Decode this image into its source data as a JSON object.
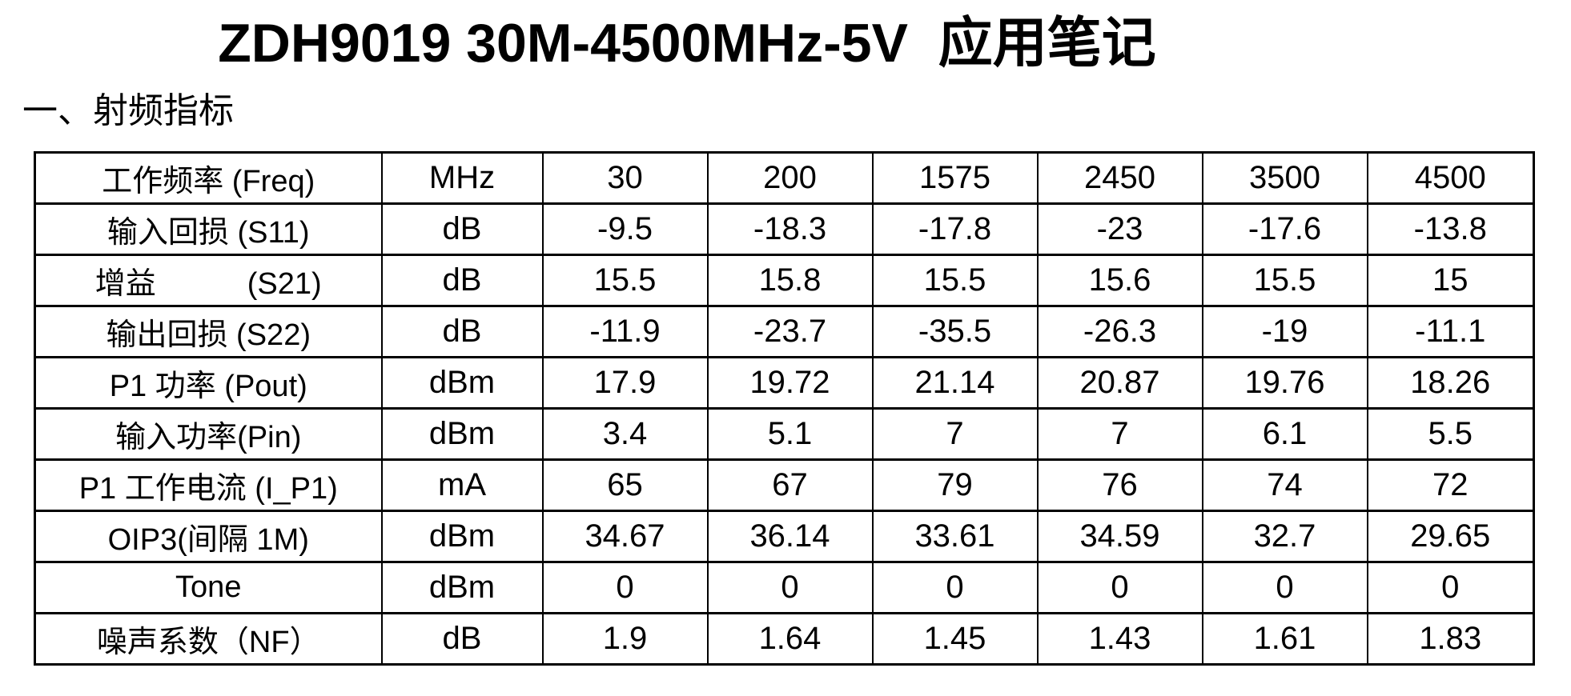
{
  "page": {
    "title": "ZDH9019 30M-4500MHz-5V  应用笔记",
    "section_heading": "一、射频指标"
  },
  "colors": {
    "background": "#ffffff",
    "text": "#000000",
    "table_border": "#000000"
  },
  "table": {
    "frequency_columns_mhz": [
      "30",
      "200",
      "1575",
      "2450",
      "3500",
      "4500"
    ],
    "rows": [
      {
        "label": "工作频率 (Freq)",
        "unit": "MHz",
        "values": [
          "30",
          "200",
          "1575",
          "2450",
          "3500",
          "4500"
        ]
      },
      {
        "label": "输入回损 (S11)",
        "unit": "dB",
        "values": [
          "-9.5",
          "-18.3",
          "-17.8",
          "-23",
          "-17.6",
          "-13.8"
        ]
      },
      {
        "label": "增益　　　(S21)",
        "unit": "dB",
        "values": [
          "15.5",
          "15.8",
          "15.5",
          "15.6",
          "15.5",
          "15"
        ]
      },
      {
        "label": "输出回损 (S22)",
        "unit": "dB",
        "values": [
          "-11.9",
          "-23.7",
          "-35.5",
          "-26.3",
          "-19",
          "-11.1"
        ]
      },
      {
        "label": "P1 功率 (Pout)",
        "unit": "dBm",
        "values": [
          "17.9",
          "19.72",
          "21.14",
          "20.87",
          "19.76",
          "18.26"
        ]
      },
      {
        "label": "输入功率(Pin)",
        "unit": "dBm",
        "values": [
          "3.4",
          "5.1",
          "7",
          "7",
          "6.1",
          "5.5"
        ]
      },
      {
        "label": "P1 工作电流 (I_P1)",
        "unit": "mA",
        "values": [
          "65",
          "67",
          "79",
          "76",
          "74",
          "72"
        ]
      },
      {
        "label": "OIP3(间隔 1M)",
        "unit": "dBm",
        "values": [
          "34.67",
          "36.14",
          "33.61",
          "34.59",
          "32.7",
          "29.65"
        ]
      },
      {
        "label": "Tone",
        "unit": "dBm",
        "values": [
          "0",
          "0",
          "0",
          "0",
          "0",
          "0"
        ]
      },
      {
        "label": "噪声系数（NF）",
        "unit": "dB",
        "values": [
          "1.9",
          "1.64",
          "1.45",
          "1.43",
          "1.61",
          "1.83"
        ]
      }
    ]
  }
}
